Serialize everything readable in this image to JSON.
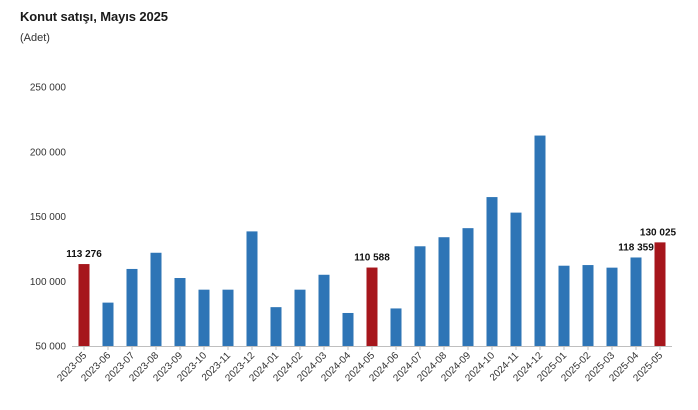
{
  "header": {
    "title": "Konut satışı, Mayıs 2025",
    "subtitle": "(Adet)"
  },
  "colors": {
    "bar_default": "#2E75B6",
    "bar_highlight": "#A6161C",
    "axis": "#BFBFBF",
    "text": "#333333"
  },
  "chart_data": {
    "type": "bar",
    "title": "Konut satışı, Mayıs 2025",
    "subtitle": "(Adet)",
    "xlabel": "",
    "ylabel": "",
    "ylim": [
      50000,
      250000
    ],
    "yticks": [
      50000,
      100000,
      150000,
      200000,
      250000
    ],
    "ytick_labels": [
      "50 000",
      "100 000",
      "150 000",
      "200 000",
      "250 000"
    ],
    "grid": false,
    "legend": "none",
    "categories": [
      "2023-05",
      "2023-06",
      "2023-07",
      "2023-08",
      "2023-09",
      "2023-10",
      "2023-11",
      "2023-12",
      "2024-01",
      "2024-02",
      "2024-03",
      "2024-04",
      "2024-05",
      "2024-06",
      "2024-07",
      "2024-08",
      "2024-09",
      "2024-10",
      "2024-11",
      "2024-12",
      "2025-01",
      "2025-02",
      "2025-03",
      "2025-04",
      "2025-05"
    ],
    "values": [
      113276,
      83500,
      109500,
      122000,
      102500,
      93500,
      93500,
      138500,
      80000,
      93500,
      105000,
      75500,
      110588,
      79000,
      127000,
      134000,
      141000,
      165000,
      153000,
      212500,
      112000,
      112500,
      110500,
      118359,
      130025
    ],
    "highlighted": [
      "2023-05",
      "2024-05",
      "2025-05"
    ],
    "data_labels": [
      {
        "category": "2023-05",
        "text": "113 276"
      },
      {
        "category": "2024-05",
        "text": "110 588"
      },
      {
        "category": "2025-04",
        "text": "118 359"
      },
      {
        "category": "2025-05",
        "text": "130 025"
      }
    ]
  }
}
